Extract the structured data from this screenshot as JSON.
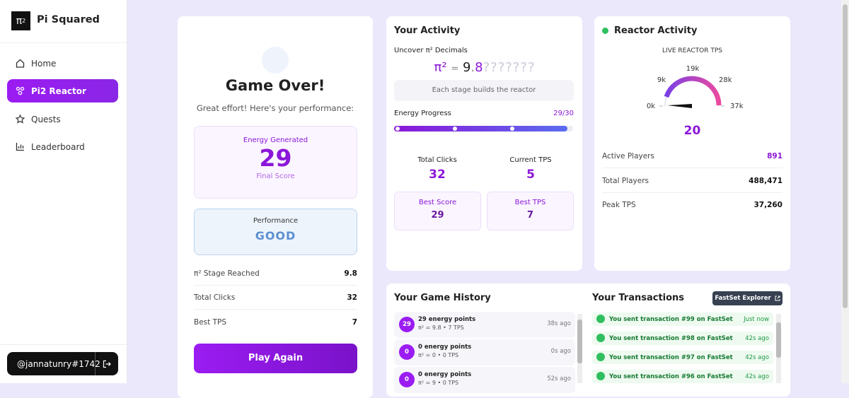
{
  "sidebar": {
    "logo": {
      "symbol": "π",
      "exp": "2"
    },
    "brand": "Pi Squared",
    "nav": [
      "Home",
      "Pi2 Reactor",
      "Quests",
      "Leaderboard"
    ],
    "active": 1,
    "user": "@jannatunry#1742"
  },
  "game_over": {
    "title": "Game Over!",
    "subtitle": "Great effort! Here's your performance:",
    "energy": {
      "label": "Energy Generated",
      "value": 29,
      "caption": "Final Score"
    },
    "performance": {
      "label": "Performance",
      "value": "GOOD"
    },
    "stats": [
      [
        "π² Stage Reached",
        9.8
      ],
      [
        "Total Clicks",
        32
      ],
      [
        "Best TPS",
        7
      ]
    ],
    "button": "Play Again"
  },
  "activity": {
    "title": "Your Activity",
    "uncover": "Uncover π² Decimals",
    "formula": {
      "symbol": "π²",
      "equals": "=",
      "digit": "9",
      "dot": ".",
      "next": "8",
      "hidden": "???????"
    },
    "note": "Each stage builds the reactor",
    "progress": {
      "label": "Energy Progress",
      "value": 29,
      "separator": "/",
      "max": 30
    },
    "stats": [
      {
        "label": "Total Clicks",
        "value": 32
      },
      {
        "label": "Current TPS",
        "value": 5
      }
    ],
    "best": [
      {
        "label": "Best Score",
        "value": 29
      },
      {
        "label": "Best TPS",
        "value": 7
      }
    ]
  },
  "reactor": {
    "title": "Reactor Activity",
    "gauge_label": "LIVE REACTOR TPS",
    "gauge_ticks": [
      "0k",
      "9k",
      "19k",
      "28k",
      "37k"
    ],
    "value": 20,
    "stats": [
      [
        "Active Players",
        "891"
      ],
      [
        "Total Players",
        "488,471"
      ],
      [
        "Peak TPS",
        "37,260"
      ]
    ]
  },
  "history": {
    "title": "Your Game History",
    "items": [
      {
        "badge": "29",
        "title": "29 energy points",
        "detail": "π² = 9.8 • 7 TPS",
        "time": "38s ago"
      },
      {
        "badge": "0",
        "title": "0 energy points",
        "detail": "π² = 0 • 0 TPS",
        "time": "0s ago"
      },
      {
        "badge": "0",
        "title": "0 energy points",
        "detail": "π² = 9 • 0 TPS",
        "time": "52s ago"
      }
    ]
  },
  "transactions": {
    "title": "Your Transactions",
    "button": "FastSet Explorer",
    "items": [
      {
        "text": "You sent transaction #99 on FastSet",
        "time": "Just now"
      },
      {
        "text": "You sent transaction #98 on FastSet",
        "time": "42s ago"
      },
      {
        "text": "You sent transaction #97 on FastSet",
        "time": "42s ago"
      },
      {
        "text": "You sent transaction #96 on FastSet",
        "time": "42s ago"
      }
    ]
  }
}
